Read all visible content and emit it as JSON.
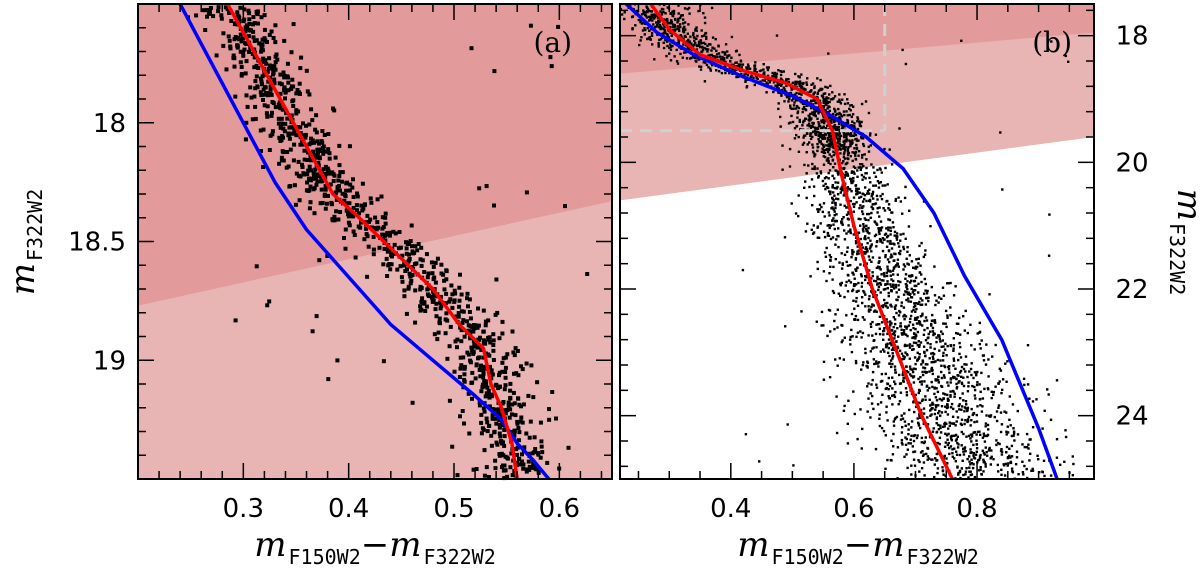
{
  "chart_data": [
    {
      "type": "scatter",
      "panel": "(a)",
      "xlabel": {
        "main": "m",
        "sub1": "F150W2",
        "sep": "−",
        "main2": "m",
        "sub2": "F322W2"
      },
      "ylabel": {
        "main": "m",
        "sub": "F322W2"
      },
      "xlim": [
        0.2,
        0.65
      ],
      "ylim": [
        19.5,
        17.5
      ],
      "xticks": [
        "0.3",
        "0.4",
        "0.5",
        "0.6"
      ],
      "xtick_values": [
        0.3,
        0.4,
        0.5,
        0.6
      ],
      "yticks": [
        "18",
        "18.5",
        "19"
      ],
      "ytick_values": [
        18,
        18.5,
        19
      ],
      "shading": [
        {
          "name": "dark-region",
          "color": "#e29a9a",
          "boundary_left_y": 18.77,
          "boundary_right_y": 18.33
        },
        {
          "name": "light-region",
          "color": "#e8b4b4",
          "boundary_left_y": 19.5,
          "boundary_right_y": 19.5
        }
      ],
      "series": [
        {
          "name": "red fiducial",
          "color": "#ff0000",
          "x": [
            0.285,
            0.31,
            0.335,
            0.36,
            0.385,
            0.41,
            0.445,
            0.48,
            0.505,
            0.528,
            0.535,
            0.545,
            0.555,
            0.56
          ],
          "y": [
            17.5,
            17.7,
            17.9,
            18.1,
            18.3,
            18.4,
            18.55,
            18.7,
            18.85,
            18.95,
            19.1,
            19.2,
            19.35,
            19.5
          ]
        },
        {
          "name": "blue fiducial",
          "color": "#0000ff",
          "x": [
            0.24,
            0.27,
            0.3,
            0.33,
            0.36,
            0.4,
            0.44,
            0.48,
            0.52,
            0.545,
            0.56,
            0.575,
            0.59
          ],
          "y": [
            17.5,
            17.75,
            18.0,
            18.25,
            18.45,
            18.65,
            18.85,
            19.0,
            19.15,
            19.25,
            19.35,
            19.42,
            19.5
          ]
        }
      ],
      "scatter": {
        "color": "#000000",
        "n_points": 1100,
        "ridge": "red fiducial",
        "ridge_spread_x": 0.018,
        "outliers": 40
      }
    },
    {
      "type": "scatter",
      "panel": "(b)",
      "xlabel": {
        "main": "m",
        "sub1": "F150W2",
        "sep": "−",
        "main2": "m",
        "sub2": "F322W2"
      },
      "ylabel": {
        "main": "m",
        "sub": "F322W2"
      },
      "xlim": [
        0.22,
        0.99
      ],
      "ylim": [
        25,
        17.5
      ],
      "xticks": [
        "0.4",
        "0.6",
        "0.8"
      ],
      "xtick_values": [
        0.4,
        0.6,
        0.8
      ],
      "yticks": [
        "18",
        "20",
        "22",
        "24"
      ],
      "ytick_values": [
        18,
        20,
        22,
        24
      ],
      "shading": [
        {
          "name": "dark-region",
          "color": "#e29a9a",
          "boundary_left_y": 18.6,
          "boundary_right_y": 17.95
        },
        {
          "name": "light-region",
          "color": "#e8b4b4",
          "boundary_left_y": 20.6,
          "boundary_right_y": 19.6
        }
      ],
      "dashed_lines": {
        "color": "#d0d0d0",
        "x": 0.65,
        "y": 19.5
      },
      "series": [
        {
          "name": "red fiducial",
          "color": "#ff0000",
          "x": [
            0.27,
            0.3,
            0.35,
            0.42,
            0.49,
            0.54,
            0.565,
            0.58,
            0.6,
            0.63,
            0.67,
            0.71,
            0.74,
            0.76
          ],
          "y": [
            17.5,
            17.9,
            18.3,
            18.55,
            18.75,
            19.0,
            19.5,
            20.2,
            21.0,
            22.0,
            23.0,
            24.0,
            24.6,
            25.0
          ]
        },
        {
          "name": "blue fiducial",
          "color": "#0000ff",
          "x": [
            0.23,
            0.28,
            0.34,
            0.42,
            0.5,
            0.56,
            0.62,
            0.68,
            0.73,
            0.78,
            0.84,
            0.9,
            0.93
          ],
          "y": [
            17.5,
            17.95,
            18.3,
            18.65,
            18.95,
            19.25,
            19.6,
            20.1,
            20.8,
            21.8,
            22.8,
            24.2,
            25.0
          ]
        }
      ],
      "scatter": {
        "color": "#000000",
        "n_points": 3200,
        "ridge": "red fiducial",
        "ridge_spread_x": 0.03,
        "broadening_below_y": 19.5,
        "outliers": 30
      }
    }
  ]
}
